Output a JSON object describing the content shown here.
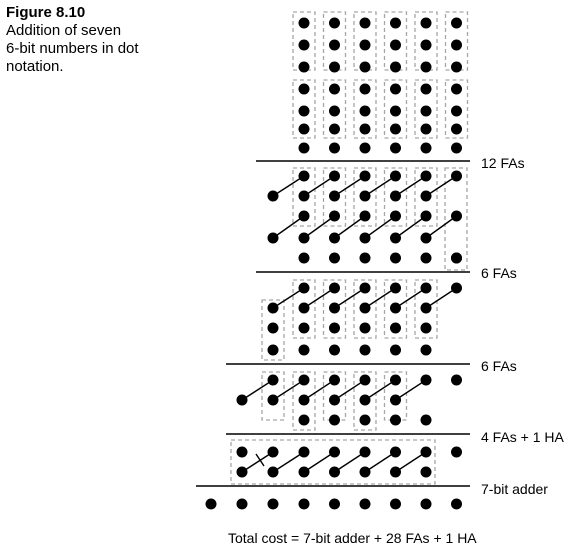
{
  "caption": {
    "figure_label": "Figure 8.10",
    "description": "Addition of seven\n6-bit numbers in dot\nnotation."
  },
  "stage_labels": [
    "12 FAs",
    "6 FAs",
    "6 FAs",
    "4 FAs + 1 HA",
    "7-bit adder"
  ],
  "total_cost": "Total cost = 7-bit adder + 28 FAs + 1 HA"
}
